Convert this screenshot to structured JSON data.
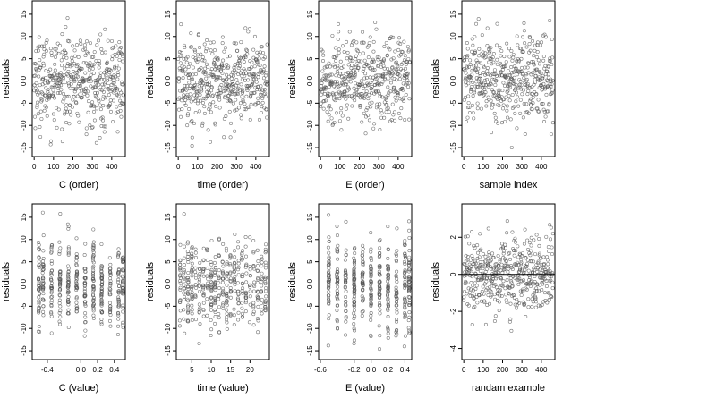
{
  "figure": {
    "background": "#ffffff",
    "point_color": "#555555",
    "line_color": "#000000"
  },
  "chart_data": [
    {
      "type": "scatter",
      "title": "",
      "xlabel": "C (order)",
      "ylabel": "residuals",
      "xlim": [
        -10,
        470
      ],
      "ylim": [
        -17,
        18
      ],
      "xticks": [
        0,
        100,
        200,
        300,
        400
      ],
      "xtick_labels": [
        "0",
        "100",
        "200",
        "300",
        "400"
      ],
      "yticks": [
        -15,
        -10,
        -5,
        0,
        5,
        10,
        15
      ],
      "ytick_labels": [
        "-15",
        "-10",
        "-5",
        "0.0",
        "5",
        "10",
        "15"
      ],
      "hline": 0,
      "grid": false,
      "legend": "none",
      "series": [
        {
          "n": 460,
          "x_pattern": "index",
          "x_min": 0,
          "x_max": 460,
          "y_sd": 5,
          "y_min": -15,
          "y_max": 17,
          "marker": "open-circle"
        }
      ]
    },
    {
      "type": "scatter",
      "title": "",
      "xlabel": "time (order)",
      "ylabel": "residuals",
      "xlim": [
        -10,
        470
      ],
      "ylim": [
        -17,
        18
      ],
      "xticks": [
        0,
        100,
        200,
        300,
        400
      ],
      "xtick_labels": [
        "0",
        "100",
        "200",
        "300",
        "400"
      ],
      "yticks": [
        -15,
        -10,
        -5,
        0,
        5,
        10,
        15
      ],
      "ytick_labels": [
        "-15",
        "-10",
        "-5",
        "0.0",
        "5",
        "10",
        "15"
      ],
      "hline": 0,
      "grid": false,
      "legend": "none",
      "series": [
        {
          "n": 460,
          "x_pattern": "index",
          "x_min": 0,
          "x_max": 460,
          "y_sd": 5,
          "y_min": -15,
          "y_max": 17,
          "marker": "open-circle"
        }
      ]
    },
    {
      "type": "scatter",
      "title": "",
      "xlabel": "E (order)",
      "ylabel": "residuals",
      "xlim": [
        -10,
        470
      ],
      "ylim": [
        -17,
        18
      ],
      "xticks": [
        0,
        100,
        200,
        300,
        400
      ],
      "xtick_labels": [
        "0",
        "100",
        "200",
        "300",
        "400"
      ],
      "yticks": [
        -15,
        -10,
        -5,
        0,
        5,
        10,
        15
      ],
      "ytick_labels": [
        "-15",
        "-10",
        "-5",
        "0.0",
        "5",
        "10",
        "15"
      ],
      "hline": 0,
      "grid": false,
      "legend": "none",
      "series": [
        {
          "n": 460,
          "x_pattern": "index",
          "x_min": 0,
          "x_max": 460,
          "y_sd": 5,
          "y_min": -15,
          "y_max": 17,
          "marker": "open-circle"
        }
      ]
    },
    {
      "type": "scatter",
      "title": "",
      "xlabel": "sample index",
      "ylabel": "residuals",
      "xlim": [
        -10,
        470
      ],
      "ylim": [
        -17,
        18
      ],
      "xticks": [
        0,
        100,
        200,
        300,
        400
      ],
      "xtick_labels": [
        "0",
        "100",
        "200",
        "300",
        "400"
      ],
      "yticks": [
        -15,
        -10,
        -5,
        0,
        5,
        10,
        15
      ],
      "ytick_labels": [
        "-15",
        "-10",
        "-5",
        "0.0",
        "5",
        "10",
        "15"
      ],
      "hline": 0,
      "grid": false,
      "legend": "none",
      "series": [
        {
          "n": 460,
          "x_pattern": "index",
          "x_min": 0,
          "x_max": 460,
          "y_sd": 5,
          "y_min": -15,
          "y_max": 17,
          "marker": "open-circle"
        }
      ]
    },
    {
      "type": "scatter",
      "title": "",
      "xlabel": "C (value)",
      "ylabel": "residuals",
      "xlim": [
        -0.58,
        0.53
      ],
      "ylim": [
        -17,
        18
      ],
      "xticks": [
        -0.4,
        0.0,
        0.2,
        0.4
      ],
      "xtick_labels": [
        "-0.4",
        "0.0",
        "0.2",
        "0.4"
      ],
      "yticks": [
        -15,
        -10,
        -5,
        0,
        5,
        10,
        15
      ],
      "ytick_labels": [
        "-15",
        "-10",
        "-5",
        "0.0",
        "5",
        "10",
        "15"
      ],
      "hline": 0,
      "grid": false,
      "legend": "none",
      "series": [
        {
          "n": 460,
          "x_pattern": "discrete",
          "x_levels": [
            -0.5,
            -0.45,
            -0.35,
            -0.25,
            -0.15,
            -0.05,
            0.05,
            0.15,
            0.25,
            0.35,
            0.45,
            0.5
          ],
          "x_jitter": 0.006,
          "y_sd": 5,
          "y_min": -15,
          "y_max": 17,
          "marker": "open-circle"
        }
      ]
    },
    {
      "type": "scatter",
      "title": "",
      "xlabel": "time (value)",
      "ylabel": "residuals",
      "xlim": [
        1,
        25
      ],
      "ylim": [
        -17,
        18
      ],
      "xticks": [
        5,
        10,
        15,
        20
      ],
      "xtick_labels": [
        "5",
        "10",
        "15",
        "20"
      ],
      "yticks": [
        -15,
        -10,
        -5,
        0,
        5,
        10,
        15
      ],
      "ytick_labels": [
        "-15",
        "-10",
        "-5",
        "0.0",
        "5",
        "10",
        "15"
      ],
      "hline": 0,
      "grid": false,
      "legend": "none",
      "series": [
        {
          "n": 460,
          "x_pattern": "discrete",
          "x_levels": [
            2,
            3,
            4,
            5,
            6,
            7,
            8,
            9,
            10,
            11,
            12,
            13,
            14,
            15,
            16,
            17,
            18,
            19,
            20,
            21,
            22,
            23,
            24
          ],
          "x_jitter": 0.12,
          "y_sd": 5,
          "y_min": -15,
          "y_max": 17,
          "marker": "open-circle"
        }
      ]
    },
    {
      "type": "scatter",
      "title": "",
      "xlabel": "E (value)",
      "ylabel": "residuals",
      "xlim": [
        -0.62,
        0.48
      ],
      "ylim": [
        -17,
        18
      ],
      "xticks": [
        -0.6,
        -0.2,
        0.0,
        0.2,
        0.4
      ],
      "xtick_labels": [
        "-0.6",
        "-0.2",
        "0.0",
        "0.2",
        "0.4"
      ],
      "yticks": [
        -15,
        -10,
        -5,
        0,
        5,
        10,
        15
      ],
      "ytick_labels": [
        "-15",
        "-10",
        "-5",
        "0.0",
        "5",
        "10",
        "15"
      ],
      "hline": 0,
      "grid": false,
      "legend": "none",
      "series": [
        {
          "n": 460,
          "x_pattern": "discrete",
          "x_levels": [
            -0.5,
            -0.4,
            -0.3,
            -0.2,
            -0.1,
            0.0,
            0.1,
            0.2,
            0.3,
            0.4,
            0.45
          ],
          "x_jitter": 0.006,
          "y_sd": 5,
          "y_min": -15,
          "y_max": 17,
          "marker": "open-circle"
        }
      ]
    },
    {
      "type": "scatter",
      "title": "",
      "xlabel": "randam example",
      "ylabel": "residuals",
      "xlim": [
        -10,
        470
      ],
      "ylim": [
        -4.6,
        3.8
      ],
      "xticks": [
        0,
        100,
        200,
        300,
        400
      ],
      "xtick_labels": [
        "0",
        "100",
        "200",
        "300",
        "400"
      ],
      "yticks": [
        -4,
        -2,
        0,
        2
      ],
      "ytick_labels": [
        "-4",
        "-2",
        "0",
        "2"
      ],
      "hline": 0,
      "grid": false,
      "legend": "none",
      "series": [
        {
          "n": 460,
          "x_pattern": "index",
          "x_min": 0,
          "x_max": 460,
          "y_sd": 1,
          "y_min": -4.2,
          "y_max": 3.4,
          "marker": "open-circle"
        }
      ]
    }
  ]
}
